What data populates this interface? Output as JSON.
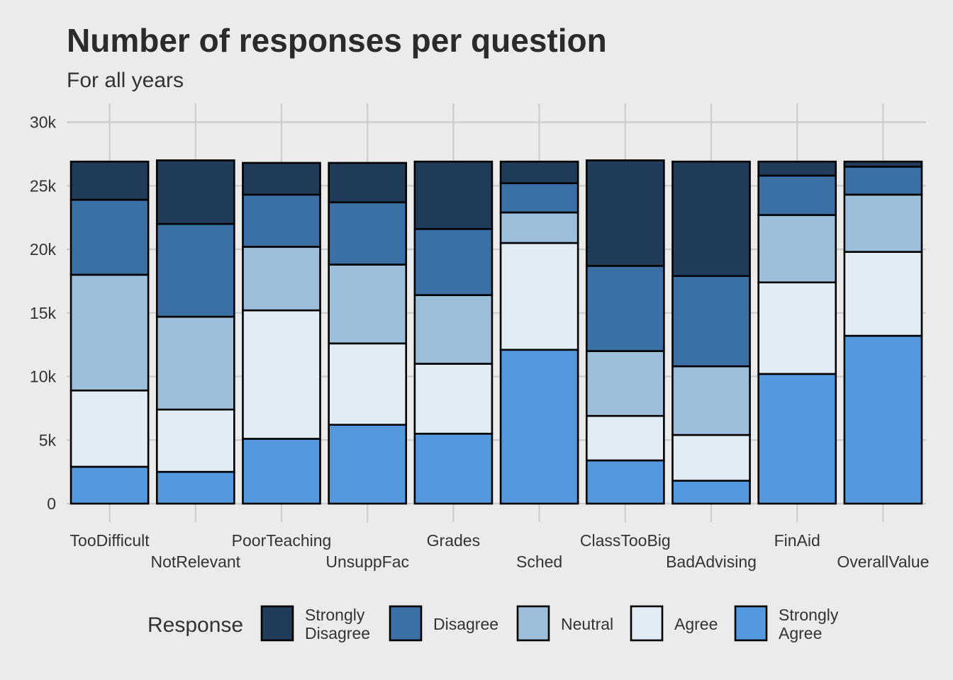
{
  "chart_data": {
    "type": "bar",
    "stacked": true,
    "title": "Number of responses per question",
    "subtitle": "For all years",
    "xlabel": "",
    "ylabel": "",
    "ylim": [
      0,
      30000
    ],
    "y_ticks": [
      0,
      5000,
      10000,
      15000,
      20000,
      25000,
      30000
    ],
    "y_tick_labels": [
      "0",
      "5k",
      "10k",
      "15k",
      "20k",
      "25k",
      "30k"
    ],
    "grid": true,
    "legend_position": "bottom",
    "legend_title": "Response",
    "categories": [
      "TooDifficult",
      "NotRelevant",
      "PoorTeaching",
      "UnsuppFac",
      "Grades",
      "Sched",
      "ClassTooBig",
      "BadAdvising",
      "FinAid",
      "OverallValue"
    ],
    "series": [
      {
        "name": "Strongly Agree",
        "color": "#5499de",
        "values": [
          2900,
          2500,
          5100,
          6200,
          5500,
          12100,
          3400,
          1800,
          10200,
          13200
        ]
      },
      {
        "name": "Agree",
        "color": "#e2ecf5",
        "values": [
          6000,
          4900,
          10100,
          6400,
          5500,
          8400,
          3500,
          3600,
          7200,
          6600
        ]
      },
      {
        "name": "Neutral",
        "color": "#9ebfdc",
        "values": [
          9100,
          7300,
          5000,
          6200,
          5400,
          2400,
          5100,
          5400,
          5300,
          4500
        ]
      },
      {
        "name": "Disagree",
        "color": "#3a70a5",
        "values": [
          5900,
          7300,
          4100,
          4900,
          5200,
          2300,
          6700,
          7100,
          3100,
          2200
        ]
      },
      {
        "name": "Strongly Disagree",
        "color": "#213b5a",
        "values": [
          3000,
          5000,
          2500,
          3100,
          5300,
          1700,
          8300,
          9000,
          1100,
          400
        ]
      }
    ],
    "legend_labels": [
      [
        "Strongly",
        "Disagree"
      ],
      [
        "Disagree"
      ],
      [
        "Neutral"
      ],
      [
        "Agree"
      ],
      [
        "Strongly",
        "Agree"
      ]
    ],
    "colors": {
      "background": "#ebebeb",
      "grid": "#cccccc",
      "bar_outline": "#000000"
    }
  }
}
